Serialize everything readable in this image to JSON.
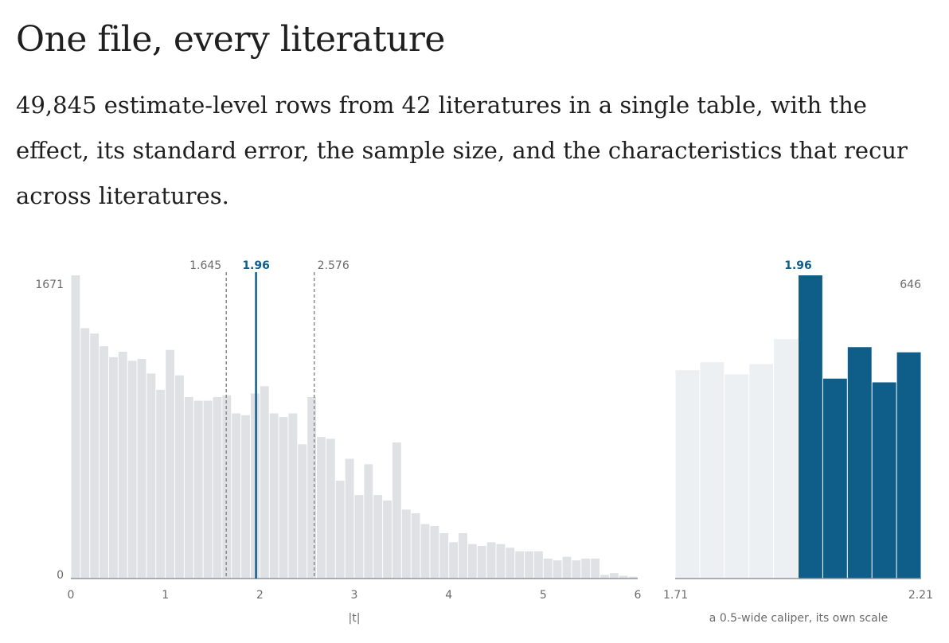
{
  "header": {
    "title": "One file, every literature",
    "subtitle": "49,845 estimate-level rows from 42 literatures in a single table, with the effect, its standard error, the sample size, and the characteristics that recur across literatures."
  },
  "colors": {
    "bar": "#dfe1e5",
    "accent": "#0f5e8a",
    "caliper_light": "#edf0f3",
    "reference_line": "#8a8a8a",
    "axis": "#8f96a0"
  },
  "chart_data": [
    {
      "type": "bar",
      "xlabel": "|t|",
      "xlim": [
        0,
        6
      ],
      "x_ticks": [
        0,
        1,
        2,
        3,
        4,
        5,
        6
      ],
      "ylim": [
        0,
        1671
      ],
      "y_ticks": [
        "1671",
        "0"
      ],
      "bin_width": 0.1,
      "bin_starts": [
        0,
        0.1,
        0.2,
        0.3,
        0.4,
        0.5,
        0.6,
        0.7,
        0.8,
        0.9,
        1.0,
        1.1,
        1.2,
        1.3,
        1.4,
        1.5,
        1.6,
        1.7,
        1.8,
        1.9,
        2.0,
        2.1,
        2.2,
        2.3,
        2.4,
        2.5,
        2.6,
        2.7,
        2.8,
        2.9,
        3.0,
        3.1,
        3.2,
        3.3,
        3.4,
        3.5,
        3.6,
        3.7,
        3.8,
        3.9,
        4.0,
        4.1,
        4.2,
        4.3,
        4.4,
        4.5,
        4.6,
        4.7,
        4.8,
        4.9,
        5.0,
        5.1,
        5.2,
        5.3,
        5.4,
        5.5,
        5.6,
        5.7,
        5.8,
        5.9
      ],
      "values": [
        1671,
        1380,
        1350,
        1280,
        1220,
        1250,
        1200,
        1210,
        1130,
        1040,
        1260,
        1120,
        1000,
        980,
        980,
        1000,
        1010,
        910,
        900,
        1020,
        1060,
        910,
        890,
        910,
        740,
        1000,
        780,
        770,
        540,
        660,
        460,
        630,
        460,
        430,
        750,
        380,
        360,
        300,
        290,
        250,
        200,
        250,
        190,
        180,
        200,
        190,
        170,
        150,
        150,
        150,
        110,
        100,
        120,
        100,
        110,
        110,
        20,
        30,
        15,
        10
      ],
      "reference_lines": [
        {
          "x": 1.645,
          "label": "1.645",
          "style": "dashed"
        },
        {
          "x": 1.96,
          "label": "1.96",
          "style": "solid"
        },
        {
          "x": 2.576,
          "label": "2.576",
          "style": "dashed"
        }
      ]
    },
    {
      "type": "bar",
      "annotation": "a 0.5-wide caliper, its own scale",
      "xlim": [
        1.71,
        2.21
      ],
      "x_ticks": [
        "1.71",
        "2.21"
      ],
      "ymax_label": "646",
      "ylim": [
        0,
        646
      ],
      "bin_width": 0.05,
      "bin_starts": [
        1.71,
        1.76,
        1.81,
        1.86,
        1.91,
        1.96,
        2.01,
        2.06,
        2.11,
        2.16
      ],
      "values": [
        444,
        461,
        435,
        457,
        510,
        646,
        426,
        493,
        418,
        482
      ],
      "threshold": {
        "x": 1.96,
        "label": "1.96"
      }
    }
  ]
}
